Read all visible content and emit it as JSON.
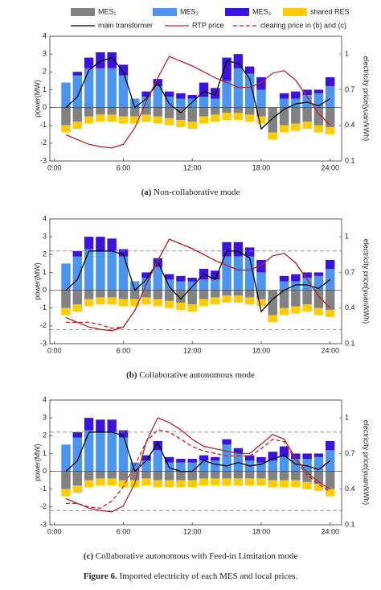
{
  "legend": [
    {
      "name": "MES₁",
      "color": "#828282",
      "kind": "bar"
    },
    {
      "name": "MES₂",
      "color": "#4b94f0",
      "kind": "bar"
    },
    {
      "name": "MES₃",
      "color": "#3a14dc",
      "kind": "bar"
    },
    {
      "name": "shared RES",
      "color": "#ffcc00",
      "kind": "bar"
    },
    {
      "name": "main transformer",
      "color": "#000000",
      "kind": "line"
    },
    {
      "name": "RTP price",
      "color": "#b02828",
      "kind": "line"
    },
    {
      "name": "clearing price in (b) and (c)",
      "color": "#b02828",
      "kind": "dashed"
    }
  ],
  "chart_data": [
    {
      "type": "bar",
      "caption_label": "(a)",
      "caption": "Non-collaborative mode",
      "ylabel": "power(MW)",
      "y2label": "electricity price(yuan/kWh)",
      "xlim": [
        -0.4,
        25
      ],
      "xticks": [
        {
          "value": 0,
          "label": "0:00"
        },
        {
          "value": 6,
          "label": "6:00"
        },
        {
          "value": 12,
          "label": "12:00"
        },
        {
          "value": 18,
          "label": "18:00"
        },
        {
          "value": 24,
          "label": "24:00"
        }
      ],
      "ylim": [
        -3,
        4
      ],
      "yticks": [
        -3,
        -2,
        -1,
        0,
        1,
        2,
        3,
        4
      ],
      "y2lim": [
        0.1,
        1.15
      ],
      "y2ticks": [
        0.1,
        0.4,
        0.7,
        1
      ],
      "x": [
        1,
        2,
        3,
        4,
        5,
        6,
        7,
        8,
        9,
        10,
        11,
        12,
        13,
        14,
        15,
        16,
        17,
        18,
        19,
        20,
        21,
        22,
        23,
        24
      ],
      "series": [
        {
          "legend": 0,
          "values": [
            -1.0,
            -0.8,
            -0.5,
            -0.4,
            -0.4,
            -0.5,
            -0.5,
            -0.4,
            -0.5,
            -0.6,
            -0.7,
            -0.8,
            -0.5,
            -0.4,
            -0.3,
            -0.3,
            -0.4,
            -0.5,
            -1.4,
            -1.0,
            -0.9,
            -0.8,
            -1.0,
            -1.1
          ]
        },
        {
          "legend": 1,
          "values": [
            1.4,
            1.8,
            2.2,
            2.2,
            2.2,
            1.8,
            0.5,
            0.6,
            1.2,
            0.6,
            0.5,
            0.5,
            0.6,
            0.5,
            1.5,
            2.2,
            1.9,
            1.0,
            0,
            0.5,
            0.5,
            0.7,
            0.8,
            1.2
          ]
        },
        {
          "legend": 2,
          "values": [
            0,
            0.2,
            0.6,
            0.9,
            0.9,
            0.6,
            0,
            0.3,
            0.4,
            0.3,
            0.3,
            0.2,
            0.8,
            0.6,
            1.3,
            0.8,
            0.4,
            0.7,
            0,
            0.3,
            0.4,
            0.3,
            0.2,
            0.5
          ]
        },
        {
          "legend": 3,
          "values": [
            -0.4,
            -0.4,
            -0.4,
            -0.4,
            -0.4,
            -0.4,
            -0.4,
            -0.4,
            -0.4,
            -0.4,
            -0.4,
            -0.4,
            -0.4,
            -0.4,
            -0.4,
            -0.4,
            -0.4,
            -0.4,
            -0.4,
            -0.4,
            -0.4,
            -0.4,
            -0.4,
            -0.4
          ]
        },
        {
          "legend": 4,
          "values": [
            0,
            0.6,
            2.1,
            2.6,
            2.8,
            2.0,
            0,
            0.5,
            1.4,
            0.2,
            -0.3,
            0.3,
            0.9,
            0.7,
            2.6,
            2.5,
            1.6,
            -1.2,
            -0.6,
            -0.1,
            0.2,
            0.3,
            0.1,
            0.5
          ]
        },
        {
          "legend": 5,
          "axis": "y2",
          "values": [
            0.32,
            0.28,
            0.24,
            0.22,
            0.21,
            0.24,
            0.38,
            0.6,
            0.8,
            0.98,
            0.94,
            0.9,
            0.85,
            0.8,
            0.76,
            0.72,
            0.72,
            0.76,
            0.84,
            0.86,
            0.78,
            0.64,
            0.5,
            0.4
          ]
        }
      ]
    },
    {
      "type": "bar",
      "caption_label": "(b)",
      "caption": "Collaborative autonomous mode",
      "ylabel": "power(MW)",
      "y2label": "electricity price(yuan/kWh)",
      "xlim": [
        -0.4,
        25
      ],
      "xticks": [
        {
          "value": 0,
          "label": "0:00"
        },
        {
          "value": 6,
          "label": "6:00"
        },
        {
          "value": 12,
          "label": "12:00"
        },
        {
          "value": 18,
          "label": "18:00"
        },
        {
          "value": 24,
          "label": "24:00"
        }
      ],
      "ylim": [
        -3,
        4
      ],
      "yticks": [
        -3,
        -2,
        -1,
        0,
        1,
        2,
        3,
        4
      ],
      "y2lim": [
        0.1,
        1.15
      ],
      "y2ticks": [
        0.1,
        0.4,
        0.7,
        1
      ],
      "reference_lines": [
        2.2,
        -2.2
      ],
      "x": [
        1,
        2,
        3,
        4,
        5,
        6,
        7,
        8,
        9,
        10,
        11,
        12,
        13,
        14,
        15,
        16,
        17,
        18,
        19,
        20,
        21,
        22,
        23,
        24
      ],
      "series": [
        {
          "legend": 0,
          "values": [
            -1.0,
            -0.8,
            -0.5,
            -0.4,
            -0.4,
            -0.5,
            -0.5,
            -0.4,
            -0.5,
            -0.6,
            -0.7,
            -0.8,
            -0.5,
            -0.4,
            -0.3,
            -0.3,
            -0.4,
            -0.5,
            -1.4,
            -1.0,
            -0.9,
            -0.8,
            -1.0,
            -1.1
          ]
        },
        {
          "legend": 1,
          "values": [
            1.5,
            1.9,
            2.3,
            2.2,
            2.2,
            1.9,
            0.5,
            0.7,
            1.3,
            0.6,
            0.5,
            0.5,
            0.6,
            0.6,
            1.9,
            1.9,
            1.9,
            1.0,
            0,
            0.5,
            0.5,
            0.7,
            0.8,
            1.2
          ]
        },
        {
          "legend": 2,
          "values": [
            0,
            0.3,
            0.7,
            0.8,
            0.7,
            0.4,
            0,
            0.3,
            0.5,
            0.3,
            0.3,
            0.2,
            0.6,
            0.5,
            0.8,
            0.8,
            0.5,
            0.7,
            0,
            0.3,
            0.4,
            0.3,
            0.2,
            0.5
          ]
        },
        {
          "legend": 3,
          "values": [
            -0.4,
            -0.4,
            -0.4,
            -0.4,
            -0.4,
            -0.4,
            -0.4,
            -0.4,
            -0.4,
            -0.4,
            -0.4,
            -0.4,
            -0.4,
            -0.4,
            -0.4,
            -0.4,
            -0.4,
            -0.4,
            -0.4,
            -0.4,
            -0.4,
            -0.4,
            -0.4,
            -0.4
          ]
        },
        {
          "legend": 4,
          "values": [
            0,
            0.6,
            2.2,
            2.2,
            2.2,
            2.0,
            0,
            0.6,
            1.6,
            0.2,
            -0.5,
            0.2,
            0.9,
            0.6,
            2.2,
            2.2,
            1.8,
            -1.2,
            -0.5,
            0,
            0.3,
            0.3,
            0.1,
            0.6
          ]
        },
        {
          "legend": 5,
          "axis": "y2",
          "values": [
            0.32,
            0.28,
            0.24,
            0.22,
            0.21,
            0.24,
            0.38,
            0.6,
            0.8,
            0.98,
            0.94,
            0.9,
            0.85,
            0.8,
            0.76,
            0.72,
            0.72,
            0.76,
            0.84,
            0.86,
            0.78,
            0.64,
            0.5,
            0.4
          ]
        },
        {
          "legend": 6,
          "axis": "y2",
          "values": [
            0.28,
            0.28,
            0.28,
            0.26,
            0.23,
            0.24,
            0.38,
            0.6,
            0.8,
            0.98,
            0.94,
            0.9,
            0.85,
            0.8,
            0.76,
            0.72,
            0.72,
            0.76,
            0.84,
            0.86,
            0.78,
            0.64,
            0.5,
            0.4
          ]
        }
      ]
    },
    {
      "type": "bar",
      "caption_label": "(c)",
      "caption": "Collaborative autonomous with Feed-in Limitation mode",
      "ylabel": "power(MW)",
      "y2label": "electricity price(yuan/kWh)",
      "xlim": [
        -0.4,
        25
      ],
      "xticks": [
        {
          "value": 0,
          "label": "0:00"
        },
        {
          "value": 6,
          "label": "6:00"
        },
        {
          "value": 12,
          "label": "12:00"
        },
        {
          "value": 18,
          "label": "18:00"
        },
        {
          "value": 24,
          "label": "24:00"
        }
      ],
      "ylim": [
        -3,
        4
      ],
      "yticks": [
        -3,
        -2,
        -1,
        0,
        1,
        2,
        3,
        4
      ],
      "y2lim": [
        0.1,
        1.15
      ],
      "y2ticks": [
        0.1,
        0.4,
        0.7,
        1
      ],
      "reference_lines": [
        2.2,
        -2.2
      ],
      "x": [
        1,
        2,
        3,
        4,
        5,
        6,
        7,
        8,
        9,
        10,
        11,
        12,
        13,
        14,
        15,
        16,
        17,
        18,
        19,
        20,
        21,
        22,
        23,
        24
      ],
      "series": [
        {
          "legend": 0,
          "values": [
            -1.0,
            -0.8,
            -0.5,
            -0.4,
            -0.4,
            -0.5,
            -0.5,
            -0.4,
            -0.5,
            -0.5,
            -0.5,
            -0.5,
            -0.4,
            -0.4,
            -0.4,
            -0.4,
            -0.4,
            -0.4,
            -0.5,
            -0.5,
            -0.5,
            -0.6,
            -0.7,
            -1.0
          ]
        },
        {
          "legend": 1,
          "values": [
            1.5,
            1.9,
            2.3,
            2.2,
            2.2,
            1.9,
            0.5,
            0.6,
            1.2,
            0.5,
            0.5,
            0.5,
            0.6,
            0.6,
            1.5,
            1.0,
            0.6,
            0.5,
            0.6,
            0.8,
            0.7,
            0.7,
            0.8,
            1.2
          ]
        },
        {
          "legend": 2,
          "values": [
            0,
            0.3,
            0.7,
            0.7,
            0.7,
            0.4,
            0,
            0.3,
            0.5,
            0.3,
            0.2,
            0.2,
            0.3,
            0.2,
            0.3,
            0.3,
            0.3,
            0.3,
            0.5,
            0.6,
            0.3,
            0.3,
            0.2,
            0.5
          ]
        },
        {
          "legend": 3,
          "values": [
            -0.4,
            -0.4,
            -0.4,
            -0.4,
            -0.4,
            -0.4,
            -0.4,
            -0.4,
            -0.4,
            -0.4,
            -0.4,
            -0.4,
            -0.4,
            -0.4,
            -0.4,
            -0.4,
            -0.4,
            -0.4,
            -0.4,
            -0.4,
            -0.4,
            -0.4,
            -0.4,
            -0.4
          ]
        },
        {
          "legend": 4,
          "values": [
            0,
            0.6,
            2.2,
            2.2,
            2.2,
            2.0,
            0,
            0.6,
            1.6,
            0.2,
            0,
            0,
            0.6,
            0.4,
            0.3,
            0.5,
            0.3,
            0.4,
            0.7,
            0.9,
            0.4,
            0.3,
            0.1,
            0.6
          ]
        },
        {
          "legend": 5,
          "axis": "y2",
          "values": [
            0.32,
            0.28,
            0.24,
            0.22,
            0.21,
            0.26,
            0.45,
            0.8,
            1.0,
            0.96,
            0.9,
            0.82,
            0.76,
            0.74,
            0.72,
            0.7,
            0.7,
            0.78,
            0.86,
            0.82,
            0.66,
            0.54,
            0.46,
            0.4
          ]
        },
        {
          "legend": 6,
          "axis": "y2",
          "values": [
            0.28,
            0.28,
            0.25,
            0.24,
            0.3,
            0.42,
            0.6,
            0.8,
            0.9,
            0.88,
            0.82,
            0.76,
            0.72,
            0.7,
            0.68,
            0.68,
            0.68,
            0.74,
            0.82,
            0.8,
            0.64,
            0.52,
            0.44,
            0.38
          ]
        }
      ]
    }
  ],
  "figure_label": "Figure 6.",
  "figure_caption": "Imported electricity of each MES and local prices."
}
